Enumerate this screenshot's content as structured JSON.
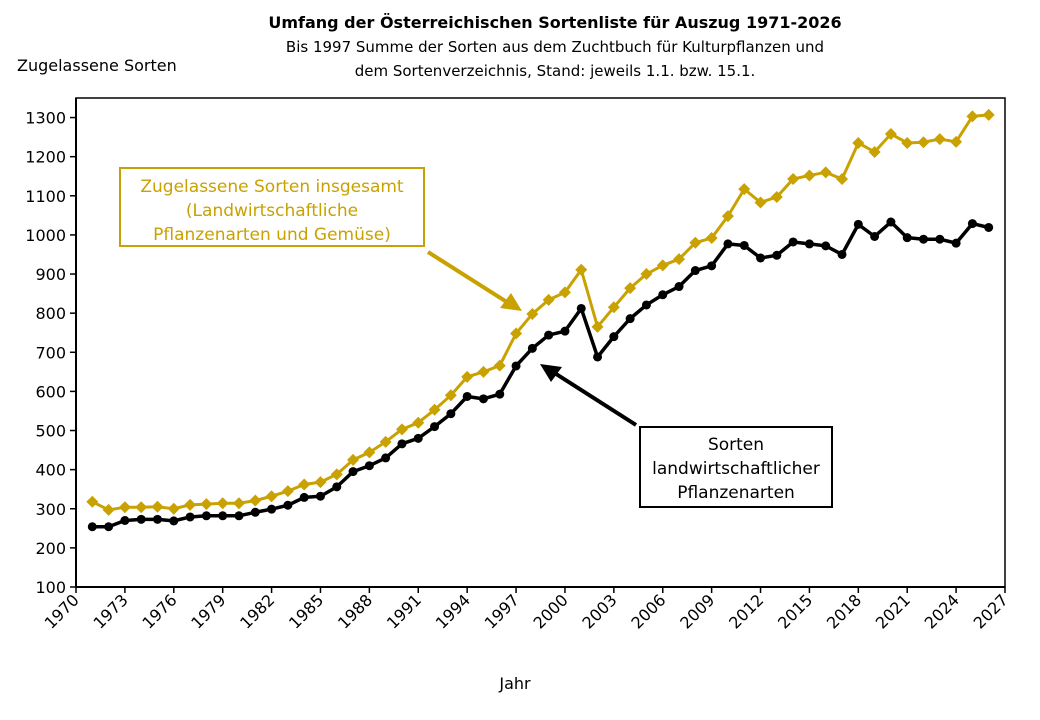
{
  "chart_data": {
    "type": "line",
    "title": "Umfang der Österreichischen Sortenliste für Auszug 1971-2026",
    "subtitle": [
      "Bis 1997 Summe der Sorten aus dem Zuchtbuch für Kulturpflanzen und",
      "dem Sortenverzeichnis, Stand: jeweils 1.1. bzw. 15.1."
    ],
    "xlabel": "Jahr",
    "ylabel": "Zugelassene Sorten",
    "xlim": [
      1970,
      2027
    ],
    "ylim": [
      100,
      1350
    ],
    "xticks": [
      1970,
      1973,
      1976,
      1979,
      1982,
      1985,
      1988,
      1991,
      1994,
      1997,
      2000,
      2003,
      2006,
      2009,
      2012,
      2015,
      2018,
      2021,
      2024,
      2027
    ],
    "yticks": [
      100,
      200,
      300,
      400,
      500,
      600,
      700,
      800,
      900,
      1000,
      1100,
      1200,
      1300
    ],
    "grid": false,
    "x": [
      1971,
      1972,
      1973,
      1974,
      1975,
      1976,
      1977,
      1978,
      1979,
      1980,
      1981,
      1982,
      1983,
      1984,
      1985,
      1986,
      1987,
      1988,
      1989,
      1990,
      1991,
      1992,
      1993,
      1994,
      1995,
      1996,
      1997,
      1998,
      1999,
      2000,
      2001,
      2002,
      2003,
      2004,
      2005,
      2006,
      2007,
      2008,
      2009,
      2010,
      2011,
      2012,
      2013,
      2014,
      2015,
      2016,
      2017,
      2018,
      2019,
      2020,
      2021,
      2022,
      2023,
      2024,
      2025,
      2026
    ],
    "series": [
      {
        "color": "#c9a100",
        "marker": "diamond",
        "values": [
          318,
          297,
          304,
          304,
          305,
          300,
          310,
          312,
          314,
          314,
          321,
          332,
          345,
          362,
          368,
          388,
          425,
          444,
          471,
          503,
          520,
          553,
          590,
          637,
          650,
          666,
          748,
          798,
          834,
          853,
          911,
          765,
          815,
          864,
          900,
          922,
          938,
          980,
          992,
          1048,
          1117,
          1083,
          1097,
          1143,
          1152,
          1160,
          1143,
          1235,
          1212,
          1258,
          1235,
          1237,
          1245,
          1238,
          1303,
          1307
        ]
      },
      {
        "color": "#000000",
        "marker": "circle",
        "values": [
          254,
          254,
          270,
          273,
          273,
          269,
          279,
          282,
          282,
          282,
          291,
          299,
          309,
          329,
          332,
          356,
          395,
          410,
          430,
          466,
          480,
          510,
          543,
          587,
          581,
          593,
          665,
          710,
          744,
          754,
          812,
          688,
          740,
          786,
          821,
          847,
          868,
          909,
          921,
          977,
          973,
          941,
          948,
          982,
          977,
          972,
          950,
          1027,
          996,
          1033,
          993,
          989,
          989,
          979,
          1029,
          1019
        ]
      }
    ],
    "annotations": [
      {
        "lines": [
          "Zugelassene Sorten insgesamt",
          "(Landwirtschaftliche",
          "Pflanzenarten und Gemüse)"
        ],
        "color": "#c9a100"
      },
      {
        "lines": [
          "Sorten",
          "landwirtschaftlicher",
          "Pflanzenarten"
        ],
        "color": "#000000"
      }
    ]
  }
}
